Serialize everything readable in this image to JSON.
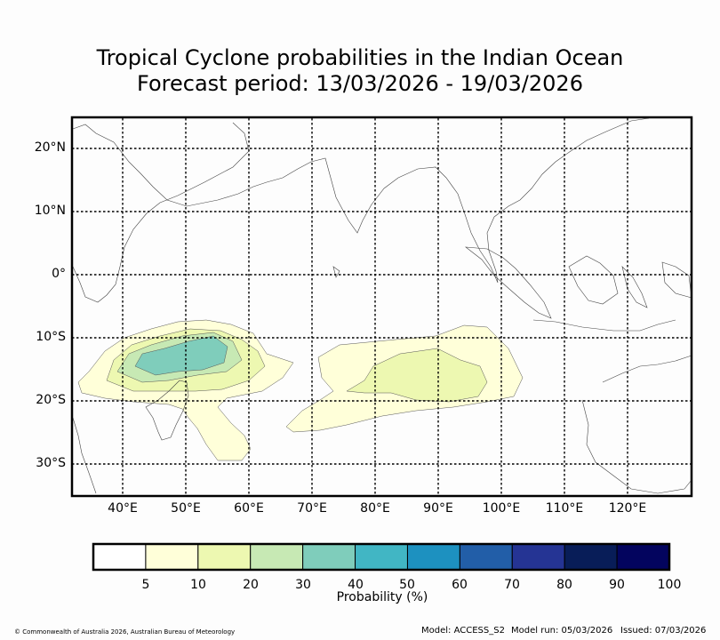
{
  "title": {
    "line1": "Tropical Cyclone probabilities in the Indian Ocean",
    "line2": "Forecast period: 13/03/2026 - 19/03/2026"
  },
  "map": {
    "lat_labels": [
      "20°N",
      "10°N",
      "0°",
      "10°S",
      "20°S",
      "30°S"
    ],
    "lon_labels": [
      "40°E",
      "50°E",
      "60°E",
      "70°E",
      "80°E",
      "90°E",
      "100°E",
      "110°E",
      "120°E"
    ],
    "lon_range": [
      32,
      130
    ],
    "lat_range": [
      -35,
      25
    ]
  },
  "colorbar": {
    "title": "Probability (%)",
    "levels": [
      "5",
      "10",
      "20",
      "30",
      "40",
      "50",
      "60",
      "70",
      "80",
      "90",
      "100"
    ],
    "colors": [
      "#ffffff",
      "#ffffd9",
      "#edf8b1",
      "#c7e9b4",
      "#7fcdbb",
      "#41b6c4",
      "#1d91c0",
      "#225ea8",
      "#253494",
      "#081d58",
      "#03045e"
    ]
  },
  "footer": {
    "copyright": "© Commonwealth of Australia 2026, Australian Bureau of Meteorology",
    "model": "Model: ACCESS_S2",
    "model_run": "Model run: 05/03/2026",
    "issued": "Issued: 07/03/2026"
  }
}
